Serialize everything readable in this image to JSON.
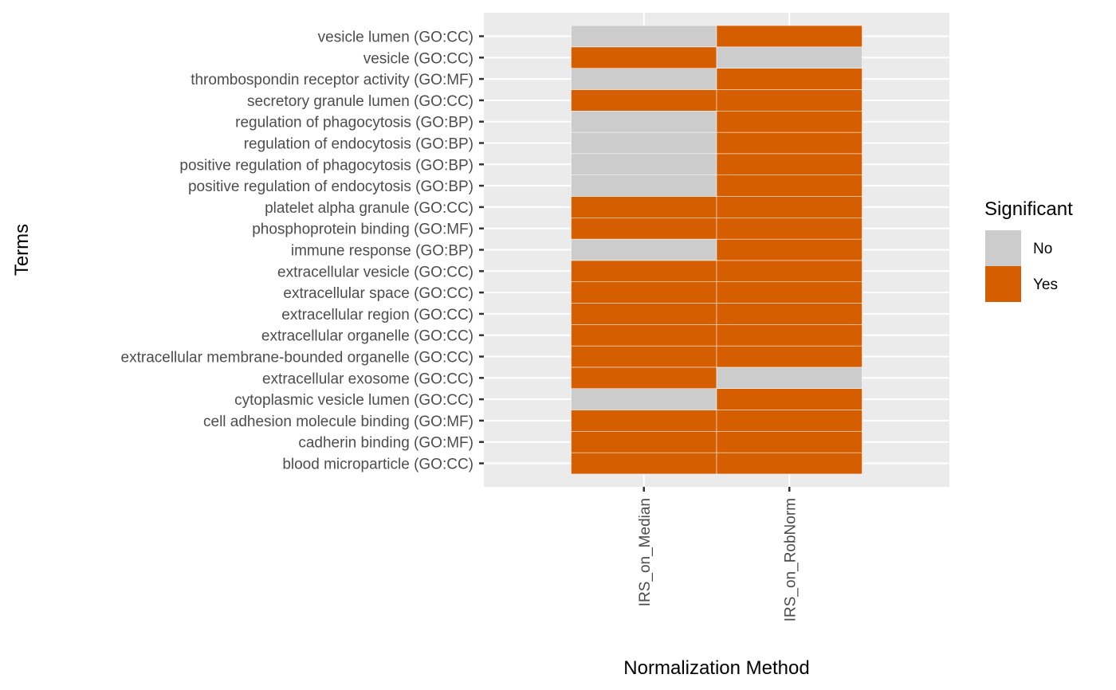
{
  "chart_data": {
    "type": "heatmap",
    "title": "",
    "xlabel": "Normalization Method",
    "ylabel": "Terms",
    "x_categories": [
      "IRS_on_Median",
      "IRS_on_RobNorm"
    ],
    "y_categories": [
      "blood microparticle (GO:CC)",
      "cadherin binding (GO:MF)",
      "cell adhesion molecule binding (GO:MF)",
      "cytoplasmic vesicle lumen (GO:CC)",
      "extracellular exosome (GO:CC)",
      "extracellular membrane-bounded organelle (GO:CC)",
      "extracellular organelle (GO:CC)",
      "extracellular region (GO:CC)",
      "extracellular space (GO:CC)",
      "extracellular vesicle (GO:CC)",
      "immune response (GO:BP)",
      "phosphoprotein binding (GO:MF)",
      "platelet alpha granule (GO:CC)",
      "positive regulation of endocytosis (GO:BP)",
      "positive regulation of phagocytosis (GO:BP)",
      "regulation of endocytosis (GO:BP)",
      "regulation of phagocytosis (GO:BP)",
      "secretory granule lumen (GO:CC)",
      "thrombospondin receptor activity (GO:MF)",
      "vesicle (GO:CC)",
      "vesicle lumen (GO:CC)"
    ],
    "values": [
      [
        "Yes",
        "Yes"
      ],
      [
        "Yes",
        "Yes"
      ],
      [
        "Yes",
        "Yes"
      ],
      [
        "No",
        "Yes"
      ],
      [
        "Yes",
        "No"
      ],
      [
        "Yes",
        "Yes"
      ],
      [
        "Yes",
        "Yes"
      ],
      [
        "Yes",
        "Yes"
      ],
      [
        "Yes",
        "Yes"
      ],
      [
        "Yes",
        "Yes"
      ],
      [
        "No",
        "Yes"
      ],
      [
        "Yes",
        "Yes"
      ],
      [
        "Yes",
        "Yes"
      ],
      [
        "No",
        "Yes"
      ],
      [
        "No",
        "Yes"
      ],
      [
        "No",
        "Yes"
      ],
      [
        "No",
        "Yes"
      ],
      [
        "Yes",
        "Yes"
      ],
      [
        "No",
        "Yes"
      ],
      [
        "Yes",
        "No"
      ],
      [
        "No",
        "Yes"
      ]
    ],
    "legend": {
      "title": "Significant",
      "position": "right",
      "entries": [
        {
          "label": "No",
          "color": "#cccccc"
        },
        {
          "label": "Yes",
          "color": "#d55e00"
        }
      ]
    },
    "panel_background": "#ebebeb",
    "grid": true
  }
}
